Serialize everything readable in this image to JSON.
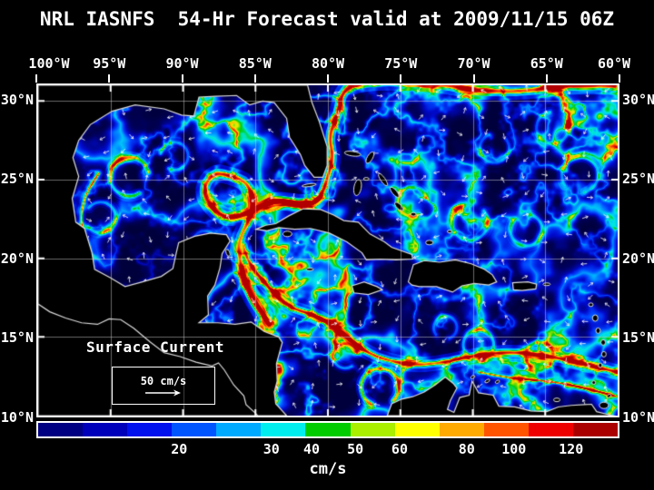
{
  "title": "NRL IASNFS  54-Hr Forecast valid at 2009/11/15 06Z",
  "axes": {
    "top": [
      "100°W",
      "95°W",
      "90°W",
      "85°W",
      "80°W",
      "75°W",
      "70°W",
      "65°W",
      "60°W"
    ],
    "left": [
      "30°N",
      "25°N",
      "20°N",
      "15°N",
      "10°N"
    ],
    "right": [
      "30°N",
      "25°N",
      "20°N",
      "15°N",
      "10°N"
    ]
  },
  "map": {
    "annotation": "Surface Current",
    "scale_label": "50 cm/s"
  },
  "colorbar": {
    "unit": "cm/s",
    "segments": [
      "#000082",
      "#0000bb",
      "#0011ee",
      "#0055ff",
      "#00aaff",
      "#00eeee",
      "#00cc00",
      "#aaee00",
      "#ffff00",
      "#ffaa00",
      "#ff5500",
      "#ee0000",
      "#aa0000"
    ],
    "ticks": [
      {
        "label": "20",
        "pos": 0.245
      },
      {
        "label": "30",
        "pos": 0.403
      },
      {
        "label": "40",
        "pos": 0.472
      },
      {
        "label": "50",
        "pos": 0.547
      },
      {
        "label": "60",
        "pos": 0.623
      },
      {
        "label": "80",
        "pos": 0.738
      },
      {
        "label": "100",
        "pos": 0.819
      },
      {
        "label": "120",
        "pos": 0.917
      }
    ]
  },
  "chart_data": {
    "type": "heatmap",
    "title": "NRL IASNFS 54-Hr Forecast valid at 2009/11/15 06Z",
    "variable": "Surface Current speed",
    "units": "cm/s",
    "x_axis": {
      "ticks": [
        "100°W",
        "95°W",
        "90°W",
        "85°W",
        "80°W",
        "75°W",
        "70°W",
        "65°W",
        "60°W"
      ]
    },
    "y_axis": {
      "ticks": [
        "30°N",
        "25°N",
        "20°N",
        "15°N",
        "10°N"
      ]
    },
    "colorbar_ticks_cm_per_s": [
      20,
      30,
      40,
      50,
      60,
      80,
      100,
      120
    ],
    "reference_vector_cm_per_s": 50,
    "legend_position": "bottom",
    "grid": true
  }
}
